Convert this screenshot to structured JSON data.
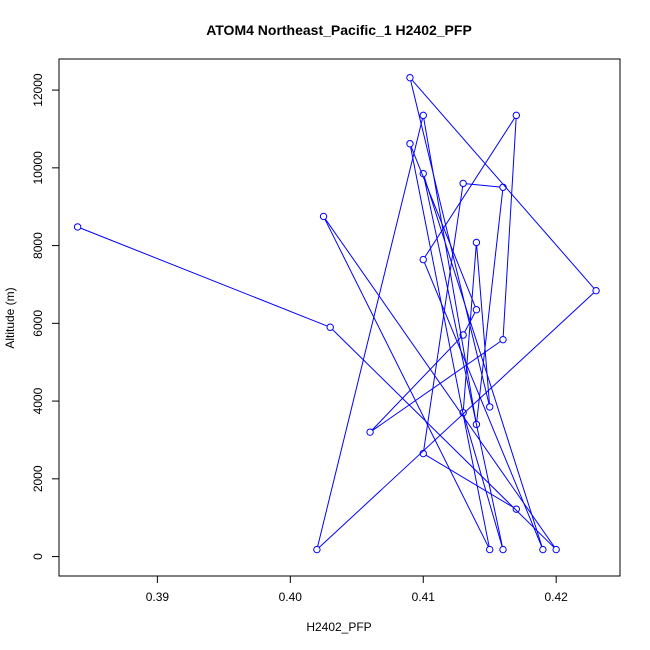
{
  "chart_data": {
    "type": "line",
    "title": "ATOM4 Northeast_Pacific_1 H2402_PFP",
    "xlabel": "H2402_PFP",
    "ylabel": "Altitude (m)",
    "xlim": [
      0.3826,
      0.4248
    ],
    "ylim": [
      -500,
      12800
    ],
    "x_ticks": [
      0.39,
      0.4,
      0.41,
      0.42
    ],
    "x_tick_labels": [
      "0.39",
      "0.40",
      "0.41",
      "0.42"
    ],
    "y_ticks": [
      0,
      2000,
      4000,
      6000,
      8000,
      10000,
      12000
    ],
    "y_tick_labels": [
      "0",
      "2000",
      "4000",
      "6000",
      "8000",
      "10000",
      "12000"
    ],
    "grid": false,
    "series": [
      {
        "color": "#0000ff",
        "marker": "open-circle",
        "points": [
          [
            0.384,
            8480
          ],
          [
            0.403,
            5900
          ],
          [
            0.42,
            180
          ],
          [
            0.4025,
            8750
          ],
          [
            0.415,
            180
          ],
          [
            0.409,
            10620
          ],
          [
            0.414,
            6350
          ],
          [
            0.413,
            5700
          ],
          [
            0.406,
            3200
          ],
          [
            0.416,
            5580
          ],
          [
            0.417,
            11350
          ],
          [
            0.41,
            7640
          ],
          [
            0.419,
            180
          ],
          [
            0.41,
            9850
          ],
          [
            0.416,
            180
          ],
          [
            0.413,
            3700
          ],
          [
            0.414,
            8080
          ],
          [
            0.415,
            3850
          ],
          [
            0.409,
            12320
          ],
          [
            0.423,
            6840
          ],
          [
            0.402,
            180
          ],
          [
            0.41,
            11350
          ],
          [
            0.414,
            3400
          ],
          [
            0.416,
            9500
          ],
          [
            0.413,
            9600
          ],
          [
            0.41,
            2650
          ],
          [
            0.417,
            1220
          ]
        ]
      }
    ]
  }
}
